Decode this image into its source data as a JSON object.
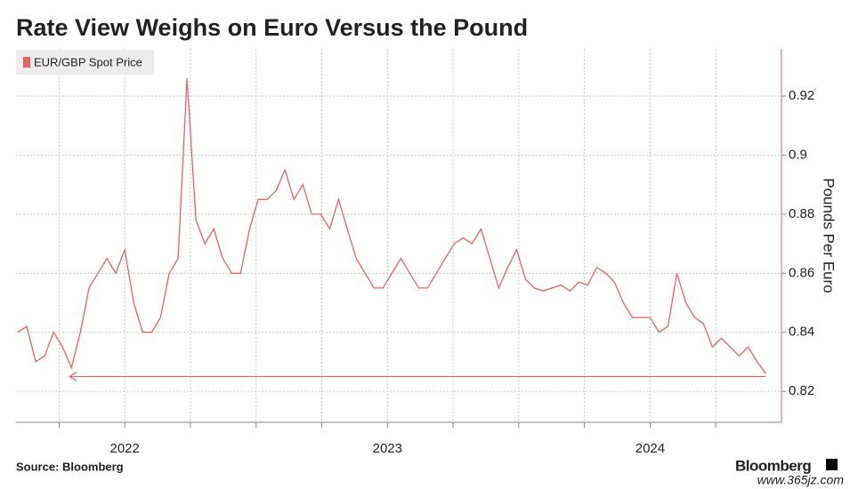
{
  "chart_data": {
    "type": "line",
    "title": "Rate View Weighs on Euro Versus the Pound",
    "source": "Source: Bloomberg",
    "brand": "Bloomberg",
    "watermark": "www.365jz.com",
    "y_axis_label": "Pounds Per Euro",
    "x": [
      2021.593,
      2021.627,
      2021.661,
      2021.695,
      2021.729,
      2021.763,
      2021.797,
      2021.831,
      2021.864,
      2021.898,
      2021.932,
      2021.966,
      2022.0,
      2022.034,
      2022.068,
      2022.102,
      2022.136,
      2022.169,
      2022.203,
      2022.237,
      2022.271,
      2022.305,
      2022.339,
      2022.373,
      2022.407,
      2022.441,
      2022.475,
      2022.508,
      2022.542,
      2022.576,
      2022.61,
      2022.644,
      2022.678,
      2022.712,
      2022.746,
      2022.78,
      2022.814,
      2022.847,
      2022.881,
      2022.915,
      2022.949,
      2022.983,
      2023.017,
      2023.051,
      2023.085,
      2023.119,
      2023.153,
      2023.186,
      2023.22,
      2023.254,
      2023.288,
      2023.322,
      2023.356,
      2023.39,
      2023.424,
      2023.458,
      2023.492,
      2023.525,
      2023.559,
      2023.593,
      2023.627,
      2023.661,
      2023.695,
      2023.729,
      2023.763,
      2023.797,
      2023.831,
      2023.864,
      2023.898,
      2023.932,
      2023.966,
      2024.0,
      2024.034,
      2024.068,
      2024.102,
      2024.136,
      2024.169,
      2024.203,
      2024.237,
      2024.271,
      2024.305,
      2024.339,
      2024.373,
      2024.407,
      2024.441
    ],
    "series": [
      {
        "name": "EUR/GBP Spot Price",
        "color": "#e8635f",
        "values": [
          0.84,
          0.842,
          0.83,
          0.832,
          0.84,
          0.835,
          0.828,
          0.84,
          0.855,
          0.86,
          0.865,
          0.86,
          0.868,
          0.85,
          0.84,
          0.84,
          0.845,
          0.86,
          0.865,
          0.926,
          0.878,
          0.87,
          0.875,
          0.865,
          0.86,
          0.86,
          0.875,
          0.885,
          0.885,
          0.888,
          0.895,
          0.885,
          0.89,
          0.88,
          0.88,
          0.875,
          0.885,
          0.875,
          0.865,
          0.86,
          0.855,
          0.855,
          0.86,
          0.865,
          0.86,
          0.855,
          0.855,
          0.86,
          0.865,
          0.87,
          0.872,
          0.87,
          0.875,
          0.865,
          0.855,
          0.862,
          0.868,
          0.858,
          0.855,
          0.854,
          0.855,
          0.856,
          0.854,
          0.857,
          0.856,
          0.862,
          0.86,
          0.857,
          0.85,
          0.845,
          0.845,
          0.845,
          0.84,
          0.842,
          0.86,
          0.85,
          0.845,
          0.843,
          0.835,
          0.838,
          0.835,
          0.832,
          0.835,
          0.83,
          0.826
        ]
      }
    ],
    "annotation_line": {
      "value": 0.825,
      "x": [
        2021.79,
        2024.44
      ]
    },
    "xlim": [
      2021.586,
      2024.5
    ],
    "xticks": [
      2022,
      2023,
      2024
    ],
    "xgrid": [
      2021.75,
      2022,
      2022.25,
      2022.5,
      2022.75,
      2023,
      2023.25,
      2023.5,
      2023.75,
      2024,
      2024.25
    ],
    "ylim": [
      0.8095,
      0.936
    ],
    "yticks": [
      0.82,
      0.84,
      0.86,
      0.88,
      0.9,
      0.92
    ],
    "grid": true,
    "legend": "top-left"
  }
}
